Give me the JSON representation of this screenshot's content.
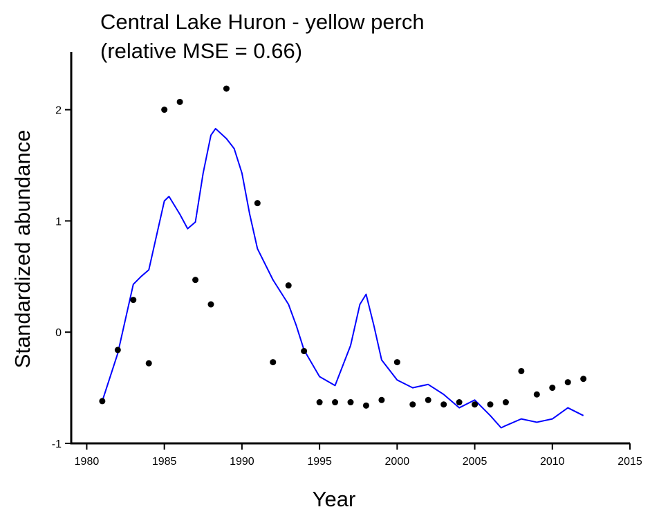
{
  "chart_data": {
    "type": "scatter",
    "title": [
      "Central Lake Huron - yellow perch",
      "(relative MSE = 0.66)"
    ],
    "x_label": "Year",
    "y_label": "Standardized abundance",
    "xlim": [
      1979,
      2015
    ],
    "ylim": [
      -1,
      2.52
    ],
    "xticks": [
      1980,
      1985,
      1990,
      1995,
      2000,
      2005,
      2010,
      2015
    ],
    "yticks": [
      -1,
      0,
      1,
      2
    ],
    "points": {
      "color": "#000000",
      "x": [
        1981,
        1982,
        1983,
        1984,
        1985,
        1986,
        1987,
        1988,
        1989,
        1991,
        1992,
        1993,
        1994,
        1995,
        1996,
        1997,
        1998,
        1999,
        2000,
        2001,
        2002,
        2003,
        2004,
        2005,
        2006,
        2007,
        2008,
        2009,
        2010,
        2011,
        2012
      ],
      "values": [
        -0.62,
        -0.16,
        0.29,
        -0.28,
        2.0,
        2.07,
        0.47,
        0.25,
        2.19,
        1.16,
        -0.27,
        0.42,
        -0.17,
        -0.63,
        -0.63,
        -0.63,
        -0.66,
        -0.61,
        -0.27,
        -0.65,
        -0.61,
        -0.65,
        -0.63,
        -0.65,
        -0.65,
        -0.63,
        -0.35,
        -0.56,
        -0.5,
        -0.45,
        -0.42
      ]
    },
    "line": {
      "color": "#0000ff",
      "x": [
        1981,
        1982,
        1983,
        1983.5,
        1984,
        1984.5,
        1985,
        1985.3,
        1986,
        1986.5,
        1987,
        1987.5,
        1988,
        1988.3,
        1989,
        1989.5,
        1990,
        1990.5,
        1991,
        1992,
        1993,
        1993.5,
        1994,
        1995,
        1996,
        1997,
        1997.6,
        1998,
        1998.5,
        1999,
        2000,
        2001,
        2002,
        2003,
        2004,
        2005,
        2006,
        2006.7,
        2007,
        2008,
        2009,
        2010,
        2011,
        2012
      ],
      "values": [
        -0.62,
        -0.19,
        0.43,
        0.5,
        0.56,
        0.87,
        1.18,
        1.22,
        1.06,
        0.93,
        0.99,
        1.43,
        1.77,
        1.83,
        1.74,
        1.65,
        1.43,
        1.06,
        0.75,
        0.47,
        0.25,
        0.06,
        -0.16,
        -0.4,
        -0.48,
        -0.12,
        0.25,
        0.34,
        0.06,
        -0.25,
        -0.43,
        -0.5,
        -0.47,
        -0.56,
        -0.68,
        -0.61,
        -0.75,
        -0.86,
        -0.84,
        -0.78,
        -0.81,
        -0.78,
        -0.68,
        -0.75
      ]
    }
  }
}
